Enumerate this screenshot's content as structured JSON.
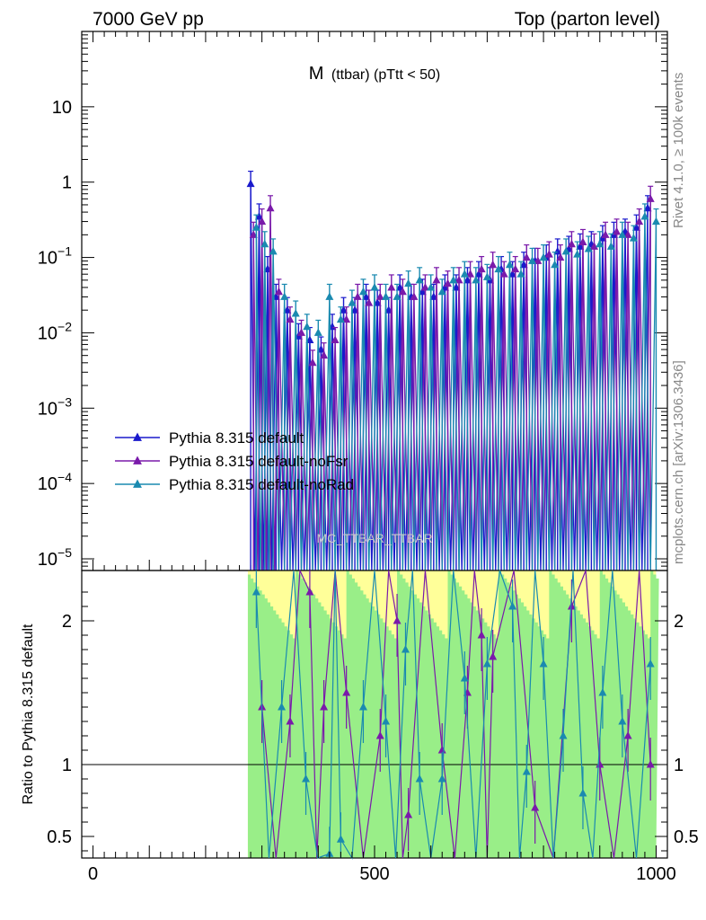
{
  "header": {
    "left_label": "7000 GeV pp",
    "right_label": "Top (parton level)"
  },
  "side_labels": {
    "rivet": "Rivet 4.1.0, ≥ 100k events",
    "mcplots": "mcplots.cern.ch [arXiv:1306.3436]"
  },
  "watermark": "MC_TTBAR_TTBAR",
  "chart_data": [
    {
      "type": "line",
      "panel": "main",
      "title": "M (ttbar) (pTtt < 50)",
      "title_main": "M",
      "title_sub": "(ttbar)  (pTtt < 50)",
      "xlim": [
        -20,
        1020
      ],
      "ylim": [
        7e-06,
        100
      ],
      "yscale": "log",
      "ytick_labels": [
        "10",
        "1",
        "10^-1",
        "10^-2",
        "10^-3",
        "10^-4",
        "10^-5"
      ],
      "ytick_values": [
        10,
        1,
        0.1,
        0.01,
        0.001,
        0.0001,
        1e-05
      ],
      "legend_position": "center-left",
      "series": [
        {
          "name": "Pythia 8.315 default",
          "color": "#1a1acc",
          "x": [
            280,
            295,
            310,
            325,
            345,
            365,
            385,
            405,
            425,
            445,
            465,
            485,
            505,
            525,
            545,
            565,
            585,
            605,
            625,
            645,
            665,
            685,
            705,
            725,
            745,
            765,
            785,
            805,
            825,
            845,
            865,
            885,
            905,
            925,
            945,
            965,
            985
          ],
          "y": [
            0.95,
            0.35,
            0.07,
            0.03,
            0.02,
            0.009,
            0.008,
            0.006,
            0.012,
            0.02,
            0.02,
            0.03,
            0.025,
            0.02,
            0.04,
            0.03,
            0.035,
            0.03,
            0.04,
            0.04,
            0.05,
            0.06,
            0.05,
            0.07,
            0.06,
            0.08,
            0.09,
            0.1,
            0.12,
            0.13,
            0.14,
            0.15,
            0.18,
            0.2,
            0.22,
            0.25,
            0.45
          ]
        },
        {
          "name": "Pythia 8.315 default-noFsr",
          "color": "#7a1aaa",
          "x": [
            285,
            300,
            315,
            330,
            350,
            370,
            390,
            410,
            430,
            450,
            470,
            490,
            510,
            530,
            550,
            570,
            590,
            610,
            630,
            650,
            670,
            690,
            710,
            730,
            750,
            770,
            790,
            810,
            830,
            850,
            870,
            890,
            910,
            930,
            950,
            970,
            990
          ],
          "y": [
            0.2,
            0.3,
            0.45,
            0.035,
            0.015,
            0.01,
            0.004,
            0.005,
            0.008,
            0.015,
            0.03,
            0.025,
            0.03,
            0.04,
            0.035,
            0.03,
            0.04,
            0.05,
            0.045,
            0.05,
            0.06,
            0.07,
            0.08,
            0.06,
            0.07,
            0.1,
            0.09,
            0.11,
            0.1,
            0.15,
            0.16,
            0.14,
            0.2,
            0.22,
            0.2,
            0.3,
            0.6
          ]
        },
        {
          "name": "Pythia 8.315 default-noRad",
          "color": "#1a8ab0",
          "x": [
            290,
            305,
            320,
            340,
            360,
            380,
            400,
            420,
            440,
            460,
            480,
            500,
            520,
            540,
            560,
            580,
            600,
            620,
            640,
            660,
            680,
            700,
            720,
            740,
            760,
            780,
            800,
            820,
            840,
            860,
            880,
            900,
            920,
            940,
            960,
            980,
            1000
          ],
          "y": [
            0.25,
            0.15,
            0.12,
            0.03,
            0.018,
            0.012,
            0.01,
            0.03,
            0.015,
            0.025,
            0.035,
            0.04,
            0.03,
            0.03,
            0.045,
            0.05,
            0.04,
            0.035,
            0.05,
            0.06,
            0.05,
            0.055,
            0.07,
            0.08,
            0.06,
            0.09,
            0.1,
            0.08,
            0.12,
            0.11,
            0.13,
            0.15,
            0.14,
            0.2,
            0.18,
            0.35,
            0.3
          ]
        }
      ]
    },
    {
      "type": "line",
      "panel": "ratio",
      "ylabel": "Ratio to Pythia 8.315 default",
      "xlim": [
        -20,
        1020
      ],
      "ylim": [
        0.35,
        2.35
      ],
      "ytick_values": [
        0.5,
        1,
        2
      ],
      "ytick_labels": [
        "0.5",
        "1",
        "2"
      ],
      "xtick_values": [
        0,
        500,
        1000
      ],
      "xtick_labels": [
        "0",
        "500",
        "1000"
      ],
      "reference_line": 1,
      "band_range": [
        275,
        1000
      ],
      "band_colors": {
        "inner": "#99ee88",
        "outer": "#ffff99"
      },
      "series": [
        {
          "name": "Pythia 8.315 default-noFsr",
          "color": "#7a1aaa",
          "x": [
            300,
            350,
            385,
            410,
            450,
            510,
            540,
            560,
            620,
            665,
            690,
            710,
            785,
            850,
            900,
            950,
            990
          ],
          "y": [
            1.4,
            1.3,
            2.2,
            1.4,
            1.5,
            1.2,
            2.0,
            0.65,
            1.1,
            1.5,
            1.9,
            1.75,
            0.7,
            2.1,
            1.0,
            1.2,
            1.0
          ]
        },
        {
          "name": "Pythia 8.315 default-noRad",
          "color": "#1a8ab0",
          "x": [
            290,
            335,
            378,
            420,
            440,
            480,
            520,
            555,
            580,
            620,
            660,
            700,
            745,
            770,
            800,
            835,
            870,
            905,
            940,
            990
          ],
          "y": [
            2.2,
            1.4,
            0.9,
            0.38,
            0.48,
            1.4,
            1.3,
            1.8,
            0.9,
            0.9,
            1.6,
            1.7,
            2.1,
            0.95,
            1.7,
            1.2,
            0.8,
            1.5,
            1.3,
            1.7
          ]
        }
      ]
    }
  ]
}
